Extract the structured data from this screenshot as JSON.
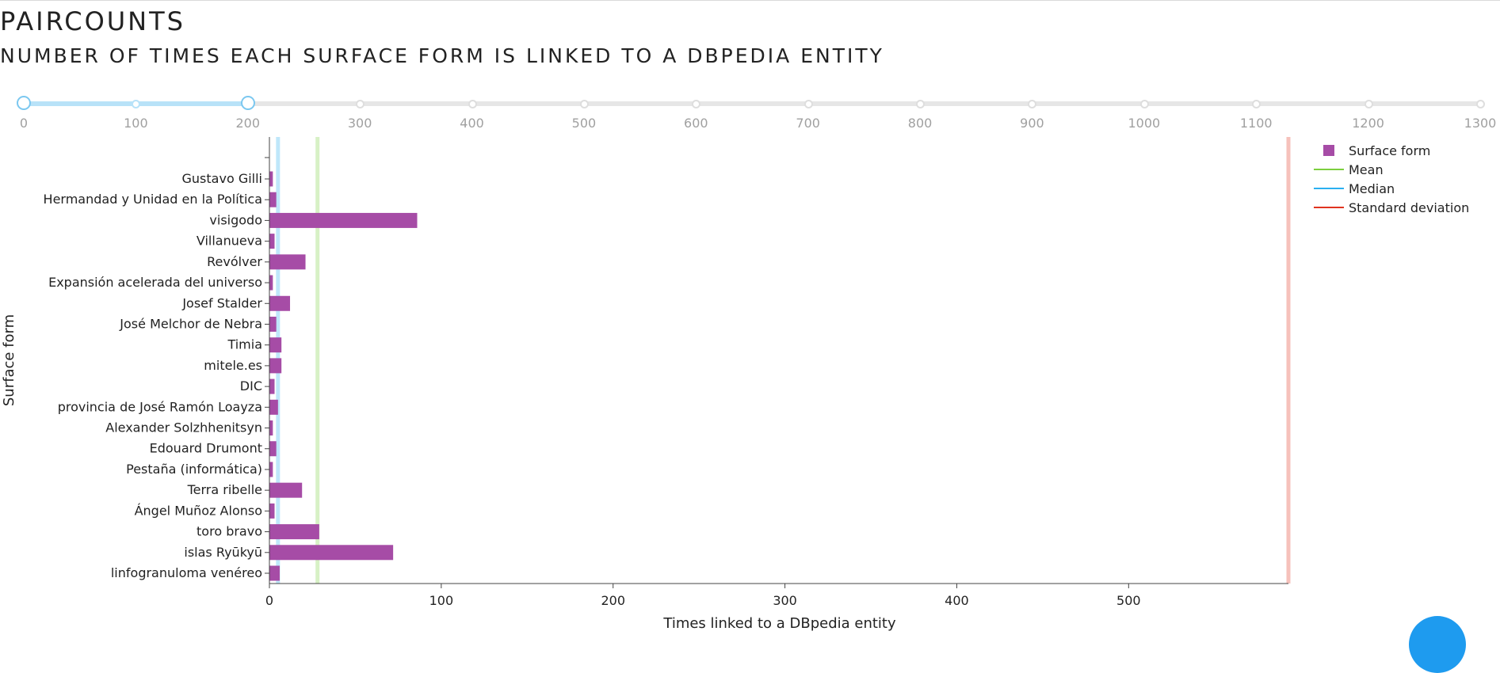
{
  "header": {
    "title": "PAIRCOUNTS",
    "subtitle": "NUMBER OF TIMES EACH SURFACE FORM IS LINKED TO A DBPEDIA ENTITY"
  },
  "slider": {
    "min": 0,
    "max": 1300,
    "step": 100,
    "range": [
      0,
      200
    ],
    "marks": [
      "0",
      "100",
      "200",
      "300",
      "400",
      "500",
      "600",
      "700",
      "800",
      "900",
      "1000",
      "1100",
      "1200",
      "1300"
    ]
  },
  "chart_data": {
    "type": "bar",
    "orientation": "horizontal",
    "xlabel": "Times linked to a DBpedia entity",
    "ylabel": "Surface form",
    "xlim": [
      0,
      593
    ],
    "xticks": [
      "0",
      "100",
      "200",
      "300",
      "400",
      "500"
    ],
    "categories": [
      "Gustavo Gilli",
      "Hermandad y Unidad en la Política",
      "visigodo",
      "Villanueva",
      "Revólver",
      "Expansión acelerada del universo",
      "Josef Stalder",
      "José Melchor de Nebra",
      "Timia",
      "mitele.es",
      "DIC",
      "provincia de José Ramón Loayza",
      "Alexander Solzhhenitsyn",
      "Edouard Drumont",
      "Pestaña (informática)",
      "Terra ribelle",
      "Ángel Muñoz Alonso",
      "toro bravo",
      "islas Ryūkyū",
      "linfogranuloma venéreo"
    ],
    "series": [
      {
        "name": "Surface form",
        "color": "#a64ca6",
        "values": [
          2,
          4,
          86,
          3,
          21,
          2,
          12,
          4,
          7,
          7,
          3,
          5,
          2,
          4,
          2,
          19,
          3,
          29,
          72,
          6
        ]
      }
    ],
    "reference_lines": [
      {
        "name": "Mean",
        "value": 28,
        "color": "#7ccf3e"
      },
      {
        "name": "Median",
        "value": 5,
        "color": "#2ab0f0"
      },
      {
        "name": "Standard deviation",
        "value": 593,
        "color": "#e0331f"
      }
    ],
    "legend_position": "top-right"
  }
}
